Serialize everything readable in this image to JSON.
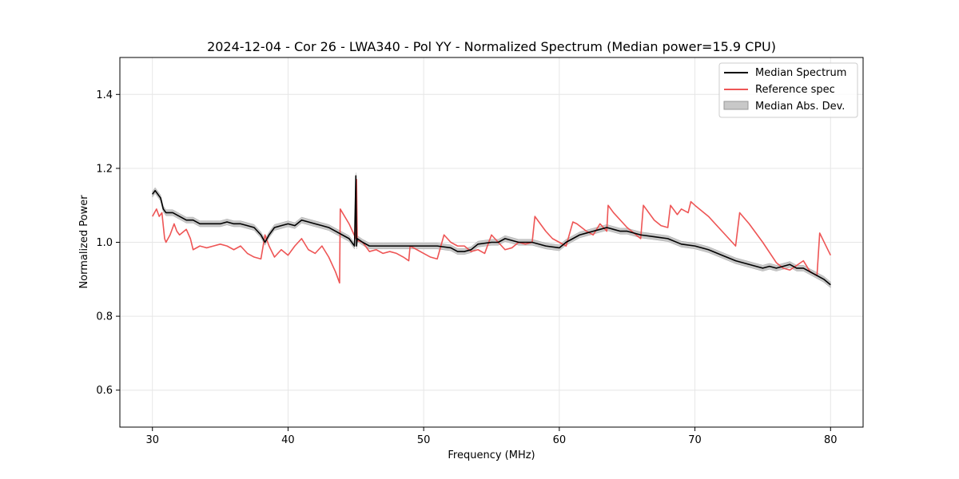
{
  "chart_data": {
    "type": "line",
    "title": "2024-12-04 - Cor 26 - LWA340 - Pol YY - Normalized Spectrum (Median power=15.9 CPU)",
    "xlabel": "Frequency (MHz)",
    "ylabel": "Normalized Power",
    "xlim": [
      27.6,
      82.4
    ],
    "ylim": [
      0.5,
      1.5
    ],
    "xticks": [
      30,
      40,
      50,
      60,
      70,
      80
    ],
    "yticks": [
      0.6,
      0.8,
      1.0,
      1.2,
      1.4
    ],
    "xtick_labels": [
      "30",
      "40",
      "50",
      "60",
      "70",
      "80"
    ],
    "ytick_labels": [
      "0.6",
      "0.8",
      "1.0",
      "1.2",
      "1.4"
    ],
    "grid": true,
    "legend_position": "top-right",
    "series": [
      {
        "name": "Median Spectrum",
        "color": "#000000",
        "x": [
          30.0,
          30.2,
          30.4,
          30.6,
          30.8,
          31.0,
          31.5,
          32.0,
          32.5,
          33.0,
          33.5,
          34.0,
          34.5,
          35.0,
          35.5,
          36.0,
          36.5,
          37.0,
          37.5,
          38.0,
          38.3,
          38.6,
          39.0,
          39.5,
          40.0,
          40.5,
          41.0,
          41.5,
          42.0,
          42.5,
          43.0,
          43.5,
          44.0,
          44.5,
          44.9,
          45.0,
          45.05,
          45.1,
          45.5,
          46.0,
          47.0,
          48.0,
          49.0,
          50.0,
          51.0,
          52.0,
          52.5,
          53.0,
          53.5,
          54.0,
          55.0,
          55.5,
          56.0,
          57.0,
          58.0,
          59.0,
          60.0,
          60.5,
          61.0,
          61.5,
          62.0,
          62.5,
          63.0,
          63.5,
          64.0,
          64.5,
          65.0,
          66.0,
          67.0,
          68.0,
          69.0,
          70.0,
          71.0,
          72.0,
          73.0,
          74.0,
          75.0,
          75.5,
          76.0,
          76.5,
          77.0,
          77.5,
          78.0,
          78.5,
          79.0,
          79.5,
          80.0
        ],
        "y": [
          1.13,
          1.14,
          1.13,
          1.12,
          1.09,
          1.08,
          1.08,
          1.07,
          1.06,
          1.06,
          1.05,
          1.05,
          1.05,
          1.05,
          1.055,
          1.05,
          1.05,
          1.045,
          1.04,
          1.02,
          1.0,
          1.02,
          1.04,
          1.045,
          1.05,
          1.045,
          1.06,
          1.055,
          1.05,
          1.045,
          1.04,
          1.03,
          1.02,
          1.01,
          0.99,
          1.18,
          0.99,
          1.01,
          1.0,
          0.99,
          0.99,
          0.99,
          0.99,
          0.99,
          0.99,
          0.985,
          0.975,
          0.975,
          0.98,
          0.995,
          1.0,
          1.0,
          1.01,
          1.0,
          1.0,
          0.99,
          0.985,
          1.0,
          1.01,
          1.02,
          1.025,
          1.03,
          1.035,
          1.04,
          1.035,
          1.03,
          1.03,
          1.02,
          1.015,
          1.01,
          0.995,
          0.99,
          0.98,
          0.965,
          0.95,
          0.94,
          0.93,
          0.935,
          0.93,
          0.935,
          0.94,
          0.93,
          0.93,
          0.92,
          0.91,
          0.9,
          0.885
        ]
      },
      {
        "name": "Reference spec",
        "color": "#ee5555",
        "x": [
          30.0,
          30.3,
          30.5,
          30.7,
          30.9,
          31.0,
          31.3,
          31.6,
          31.8,
          32.0,
          32.5,
          32.8,
          33.0,
          33.5,
          34.0,
          34.5,
          35.0,
          35.5,
          36.0,
          36.5,
          37.0,
          37.5,
          38.0,
          38.3,
          38.6,
          39.0,
          39.5,
          40.0,
          40.5,
          41.0,
          41.5,
          42.0,
          42.5,
          43.0,
          43.5,
          43.8,
          43.85,
          44.5,
          45.0,
          45.05,
          45.1,
          45.5,
          46.0,
          46.5,
          47.0,
          47.5,
          48.0,
          48.5,
          48.9,
          49.0,
          49.5,
          50.0,
          50.5,
          51.0,
          51.5,
          52.0,
          52.5,
          53.0,
          53.5,
          54.0,
          54.5,
          55.0,
          55.5,
          56.0,
          56.5,
          57.0,
          57.5,
          58.0,
          58.2,
          59.0,
          59.5,
          60.0,
          60.5,
          61.0,
          61.3,
          62.0,
          62.5,
          63.0,
          63.5,
          63.6,
          64.0,
          65.0,
          66.0,
          66.2,
          67.0,
          67.5,
          68.0,
          68.2,
          68.7,
          69.0,
          69.5,
          69.7,
          70.0,
          71.0,
          72.0,
          73.0,
          73.3,
          74.0,
          75.0,
          76.0,
          76.5,
          77.0,
          78.0,
          78.5,
          79.0,
          79.2,
          80.0
        ],
        "y": [
          1.07,
          1.09,
          1.07,
          1.08,
          1.01,
          1.0,
          1.02,
          1.05,
          1.03,
          1.02,
          1.035,
          1.01,
          0.98,
          0.99,
          0.985,
          0.99,
          0.995,
          0.99,
          0.98,
          0.99,
          0.97,
          0.96,
          0.955,
          1.02,
          0.99,
          0.96,
          0.98,
          0.965,
          0.99,
          1.01,
          0.98,
          0.97,
          0.99,
          0.96,
          0.92,
          0.89,
          1.09,
          1.05,
          1.01,
          1.17,
          1.005,
          1.0,
          0.975,
          0.98,
          0.97,
          0.975,
          0.97,
          0.96,
          0.95,
          0.99,
          0.98,
          0.97,
          0.96,
          0.955,
          1.02,
          1.0,
          0.99,
          0.99,
          0.975,
          0.98,
          0.97,
          1.02,
          1.0,
          0.98,
          0.985,
          1.0,
          0.995,
          1.0,
          1.07,
          1.03,
          1.01,
          1.0,
          0.99,
          1.055,
          1.05,
          1.03,
          1.02,
          1.05,
          1.03,
          1.1,
          1.08,
          1.04,
          1.01,
          1.1,
          1.06,
          1.045,
          1.04,
          1.1,
          1.075,
          1.09,
          1.08,
          1.11,
          1.1,
          1.07,
          1.03,
          0.99,
          1.08,
          1.05,
          1.0,
          0.945,
          0.93,
          0.925,
          0.95,
          0.92,
          0.91,
          1.025,
          0.965
        ]
      }
    ],
    "mad_band": {
      "name": "Median Abs. Dev.",
      "color": "#c8c8c8",
      "halfwidth": 0.008
    }
  }
}
